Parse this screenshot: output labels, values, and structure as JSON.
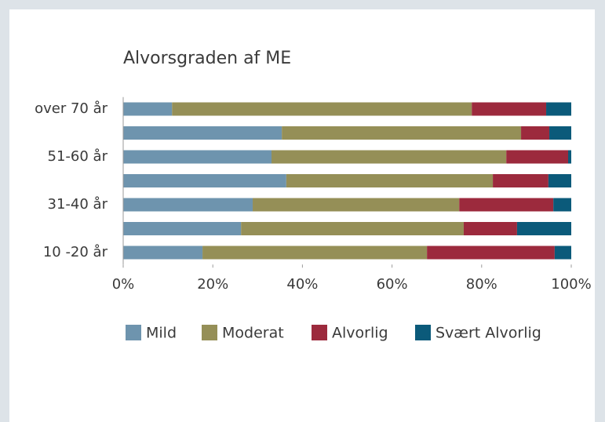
{
  "chart_data": {
    "type": "stacked-bar-horizontal",
    "title": "Alvorsgraden af ME",
    "categories": [
      "over 70 år",
      null,
      "51-60 år",
      null,
      "31-40 år",
      null,
      "10 -20 år"
    ],
    "series": [
      {
        "name": "Mild",
        "color": "#6e94ae",
        "values": [
          10.9,
          35.4,
          33.1,
          36.4,
          28.9,
          26.3,
          17.7
        ]
      },
      {
        "name": "Moderat",
        "color": "#958f57",
        "values": [
          66.9,
          53.4,
          52.4,
          46.1,
          46.1,
          49.7,
          50.1
        ]
      },
      {
        "name": "Alvorlig",
        "color": "#9c2a3d",
        "values": [
          16.6,
          6.3,
          13.8,
          12.4,
          21.0,
          11.9,
          28.5
        ]
      },
      {
        "name": "Svært Alvorlig",
        "color": "#0b5a7a",
        "values": [
          5.6,
          4.9,
          0.7,
          5.1,
          4.0,
          12.1,
          3.7
        ]
      }
    ],
    "xlim": [
      0,
      100
    ],
    "xticks": [
      {
        "value": 0,
        "label": "0%"
      },
      {
        "value": 20,
        "label": "20%"
      },
      {
        "value": 40,
        "label": "40%"
      },
      {
        "value": 60,
        "label": "60%"
      },
      {
        "value": 80,
        "label": "80%"
      },
      {
        "value": 100,
        "label": "100%"
      }
    ],
    "legend": "bottom"
  }
}
